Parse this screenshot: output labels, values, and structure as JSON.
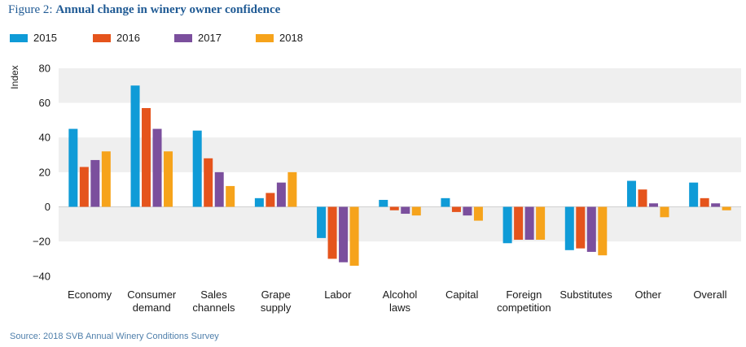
{
  "figure": {
    "lead": "Figure 2: ",
    "title": "Annual change in winery owner confidence",
    "source": "Source: 2018 SVB Annual Winery Conditions Survey"
  },
  "colors": {
    "2015": "#0f9bd7",
    "2016": "#e5541c",
    "2017": "#7b4f9d",
    "2018": "#f6a31b",
    "band": "#efefef"
  },
  "chart_data": {
    "type": "bar",
    "title": "Annual change in winery owner confidence",
    "xlabel": "",
    "ylabel": "Index",
    "ylim": [
      -40,
      80
    ],
    "yticks": [
      80,
      60,
      40,
      20,
      0,
      -20,
      -40
    ],
    "ytick_labels": [
      "80",
      "60",
      "40",
      "20",
      "0",
      "−20",
      "−40"
    ],
    "legend_position": "top-left",
    "categories": [
      [
        "Economy"
      ],
      [
        "Consumer",
        "demand"
      ],
      [
        "Sales",
        "channels"
      ],
      [
        "Grape",
        "supply"
      ],
      [
        "Labor"
      ],
      [
        "Alcohol",
        "laws"
      ],
      [
        "Capital"
      ],
      [
        "Foreign",
        "competition"
      ],
      [
        "Substitutes"
      ],
      [
        "Other"
      ],
      [
        "Overall"
      ]
    ],
    "series": [
      {
        "name": "2015",
        "values": [
          45,
          70,
          44,
          5,
          -18,
          4,
          5,
          -21,
          -25,
          15,
          14
        ]
      },
      {
        "name": "2016",
        "values": [
          23,
          57,
          28,
          8,
          -30,
          -2,
          -3,
          -19,
          -24,
          10,
          5
        ]
      },
      {
        "name": "2017",
        "values": [
          27,
          45,
          20,
          14,
          -32,
          -4,
          -5,
          -19,
          -26,
          2,
          2
        ]
      },
      {
        "name": "2018",
        "values": [
          32,
          32,
          12,
          20,
          -34,
          -5,
          -8,
          -19,
          -28,
          -6,
          -2
        ]
      }
    ]
  }
}
